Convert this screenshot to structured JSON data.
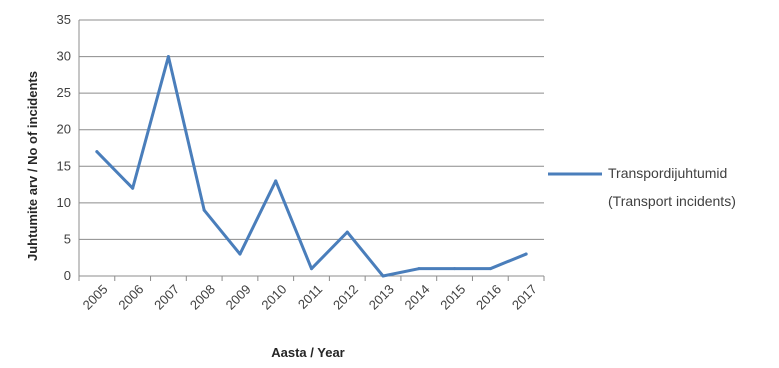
{
  "chart_data": {
    "type": "line",
    "title": "",
    "xlabel": "Aasta / Year",
    "ylabel": "Juhtumite arv / No of incidents",
    "x": [
      "2005",
      "2006",
      "2007",
      "2008",
      "2009",
      "2010",
      "2011",
      "2012",
      "2013",
      "2014",
      "2015",
      "2016",
      "2017"
    ],
    "ylim": [
      0,
      35
    ],
    "yticks": [
      "0",
      "5",
      "10",
      "15",
      "20",
      "25",
      "30",
      "35"
    ],
    "grid": true,
    "legend_position": "right",
    "series": [
      {
        "name": "Transpordijuhtumid (Transport incidents)",
        "legend_lines": [
          "Transpordijuhtumid",
          "(Transport incidents)"
        ],
        "color": "#4a7ebb",
        "values": [
          17,
          12,
          30,
          9,
          3,
          13,
          1,
          6,
          0,
          1,
          1,
          1,
          3
        ]
      }
    ]
  }
}
